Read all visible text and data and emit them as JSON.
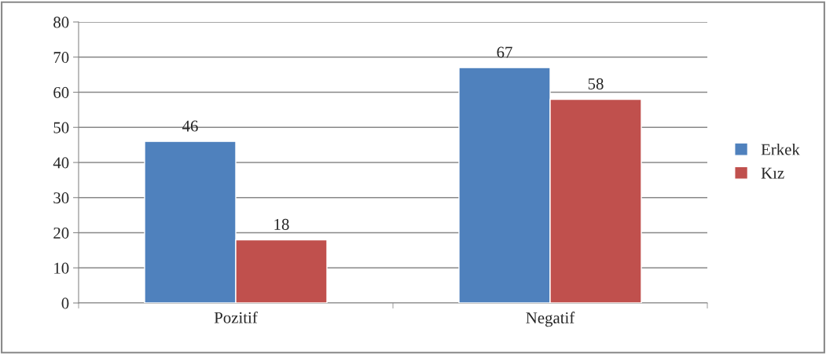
{
  "chart_data": {
    "type": "bar",
    "categories": [
      "Pozitif",
      "Negatif"
    ],
    "series": [
      {
        "name": "Erkek",
        "color": "#4f81bd",
        "values": [
          46,
          67
        ]
      },
      {
        "name": "Kız",
        "color": "#c0504d",
        "values": [
          18,
          58
        ]
      }
    ],
    "ylim": [
      0,
      80
    ],
    "yticks": [
      0,
      10,
      20,
      30,
      40,
      50,
      60,
      70,
      80
    ],
    "grid": "y",
    "legend": "right",
    "data_labels": true
  }
}
